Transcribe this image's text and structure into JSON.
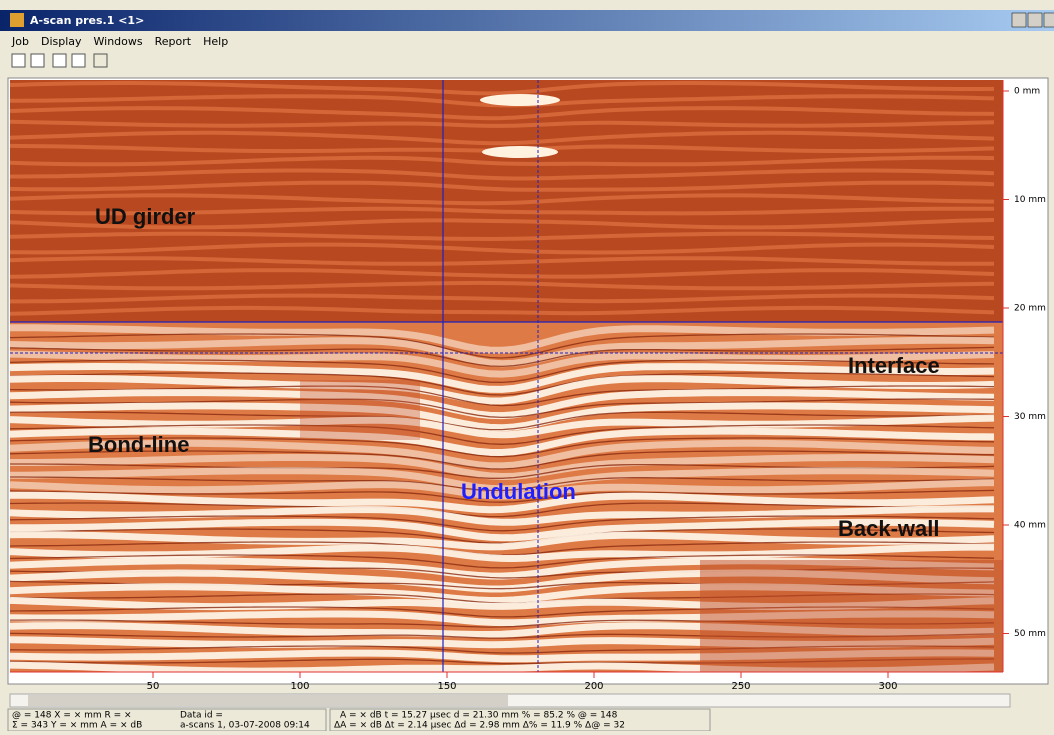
{
  "window": {
    "title": "A-scan pres.1 <1>"
  },
  "menu": [
    "Job",
    "Display",
    "Windows",
    "Report",
    "Help"
  ],
  "scan": {
    "annotations": {
      "ud_girder": "UD girder",
      "interface": "Interface",
      "bond_line": "Bond-line",
      "undulation": "Undulation",
      "back_wall": "Back-wall"
    },
    "depth_labels": [
      "0 mm",
      "10 mm",
      "20 mm",
      "30 mm",
      "40 mm",
      "50 mm"
    ],
    "position_labels": [
      "50",
      "100",
      "150",
      "200",
      "250",
      "300"
    ]
  },
  "status": {
    "left": [
      "@ = 148   X = × mm    R = ×",
      "Σ = 343   Y = × mm    A = × dB"
    ],
    "data": [
      "Data id =",
      "a-scans 1, 03-07-2008 09:14"
    ],
    "right": [
      "A = × dB     t = 15.27 µsec     d = 21.30 mm     % = 85.2 %     @ = 148",
      "ΔA = × dB   Δt =  2.14 µsec   Δd =  2.98 mm   Δ% = 11.9 %   Δ@ =  32"
    ]
  }
}
